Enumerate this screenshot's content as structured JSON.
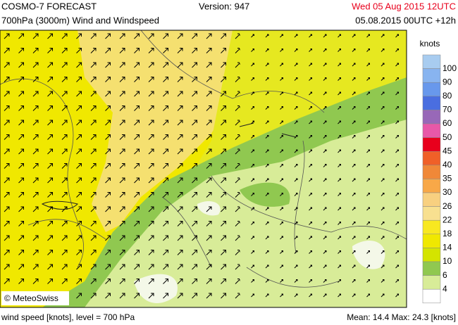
{
  "header": {
    "title": "COSMO-7 FORECAST",
    "subtitle": "700hPa (3000m) Wind and Windspeed",
    "version": "Version: 947",
    "valid_time": "Wed 05 Aug 2015 12UTC",
    "run": "05.08.2015 00UTC +12h"
  },
  "map": {
    "copyright": "© MeteoSwiss"
  },
  "legend": {
    "unit": "knots",
    "levels": [
      {
        "label": "100",
        "color": "#a8ccf0"
      },
      {
        "label": "90",
        "color": "#88b4f0"
      },
      {
        "label": "80",
        "color": "#6898ec"
      },
      {
        "label": "70",
        "color": "#4a6ee0"
      },
      {
        "label": "60",
        "color": "#9868b8"
      },
      {
        "label": "50",
        "color": "#e858a8"
      },
      {
        "label": "45",
        "color": "#e8001c"
      },
      {
        "label": "40",
        "color": "#f06028"
      },
      {
        "label": "35",
        "color": "#f08838"
      },
      {
        "label": "30",
        "color": "#f8a848"
      },
      {
        "label": "26",
        "color": "#f8d080"
      },
      {
        "label": "22",
        "color": "#f8e090"
      },
      {
        "label": "18",
        "color": "#f8e820"
      },
      {
        "label": "14",
        "color": "#f0e800"
      },
      {
        "label": "10",
        "color": "#d4e400"
      },
      {
        "label": "6",
        "color": "#90c850"
      },
      {
        "label": "4",
        "color": "#d8ec98"
      }
    ]
  },
  "footer": {
    "left": "wind speed [knots], level = 700 hPa",
    "right": "Mean:  14.4 Max:  24.3 [knots]"
  }
}
